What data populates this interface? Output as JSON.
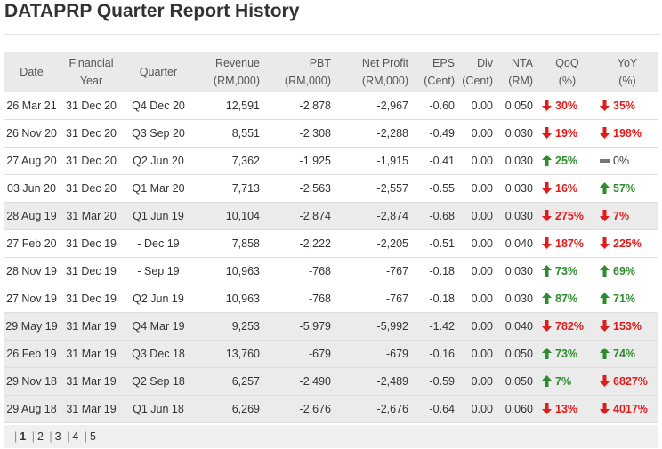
{
  "title": "DATAPRP Quarter Report History",
  "columns": {
    "date": "Date",
    "fy_1": "Financial",
    "fy_2": "Year",
    "quarter": "Quarter",
    "revenue_1": "Revenue",
    "revenue_2": "(RM,000)",
    "pbt_1": "PBT",
    "pbt_2": "(RM,000)",
    "np_1": "Net Profit",
    "np_2": "(RM,000)",
    "eps_1": "EPS",
    "eps_2": "(Cent)",
    "div_1": "Div",
    "div_2": "(Cent)",
    "nta_1": "NTA",
    "nta_2": "(RM)",
    "qoq_1": "QoQ",
    "qoq_2": "(%)",
    "yoy_1": "YoY",
    "yoy_2": "(%)"
  },
  "rows": [
    {
      "date": "26 Mar 21",
      "fy": "31 Dec 20",
      "quarter": "Q4 Dec 20",
      "revenue": "12,591",
      "pbt": "-2,878",
      "np": "-2,967",
      "eps": "-0.60",
      "div": "0.00",
      "nta": "0.050",
      "qoq": "30%",
      "qoq_dir": "down",
      "yoy": "35%",
      "yoy_dir": "down",
      "shaded": false
    },
    {
      "date": "26 Nov 20",
      "fy": "31 Dec 20",
      "quarter": "Q3 Sep 20",
      "revenue": "8,551",
      "pbt": "-2,308",
      "np": "-2,288",
      "eps": "-0.49",
      "div": "0.00",
      "nta": "0.030",
      "qoq": "19%",
      "qoq_dir": "down",
      "yoy": "198%",
      "yoy_dir": "down",
      "shaded": false
    },
    {
      "date": "27 Aug 20",
      "fy": "31 Dec 20",
      "quarter": "Q2 Jun 20",
      "revenue": "7,362",
      "pbt": "-1,925",
      "np": "-1,915",
      "eps": "-0.41",
      "div": "0.00",
      "nta": "0.030",
      "qoq": "25%",
      "qoq_dir": "up",
      "yoy": "0%",
      "yoy_dir": "flat",
      "shaded": false
    },
    {
      "date": "03 Jun 20",
      "fy": "31 Dec 20",
      "quarter": "Q1 Mar 20",
      "revenue": "7,713",
      "pbt": "-2,563",
      "np": "-2,557",
      "eps": "-0.55",
      "div": "0.00",
      "nta": "0.030",
      "qoq": "16%",
      "qoq_dir": "down",
      "yoy": "57%",
      "yoy_dir": "up",
      "shaded": false
    },
    {
      "date": "28 Aug 19",
      "fy": "31 Mar 20",
      "quarter": "Q1 Jun 19",
      "revenue": "10,104",
      "pbt": "-2,874",
      "np": "-2,874",
      "eps": "-0.68",
      "div": "0.00",
      "nta": "0.030",
      "qoq": "275%",
      "qoq_dir": "down",
      "yoy": "7%",
      "yoy_dir": "down",
      "shaded": true
    },
    {
      "date": "27 Feb 20",
      "fy": "31 Dec 19",
      "quarter": "- Dec 19",
      "revenue": "7,858",
      "pbt": "-2,222",
      "np": "-2,205",
      "eps": "-0.51",
      "div": "0.00",
      "nta": "0.040",
      "qoq": "187%",
      "qoq_dir": "down",
      "yoy": "225%",
      "yoy_dir": "down",
      "shaded": false
    },
    {
      "date": "28 Nov 19",
      "fy": "31 Dec 19",
      "quarter": "- Sep 19",
      "revenue": "10,963",
      "pbt": "-768",
      "np": "-767",
      "eps": "-0.18",
      "div": "0.00",
      "nta": "0.030",
      "qoq": "73%",
      "qoq_dir": "up",
      "yoy": "69%",
      "yoy_dir": "up",
      "shaded": false
    },
    {
      "date": "27 Nov 19",
      "fy": "31 Dec 19",
      "quarter": "Q2 Jun 19",
      "revenue": "10,963",
      "pbt": "-768",
      "np": "-767",
      "eps": "-0.18",
      "div": "0.00",
      "nta": "0.030",
      "qoq": "87%",
      "qoq_dir": "up",
      "yoy": "71%",
      "yoy_dir": "up",
      "shaded": false
    },
    {
      "date": "29 May 19",
      "fy": "31 Mar 19",
      "quarter": "Q4 Mar 19",
      "revenue": "9,253",
      "pbt": "-5,979",
      "np": "-5,992",
      "eps": "-1.42",
      "div": "0.00",
      "nta": "0.040",
      "qoq": "782%",
      "qoq_dir": "down",
      "yoy": "153%",
      "yoy_dir": "down",
      "shaded": true
    },
    {
      "date": "26 Feb 19",
      "fy": "31 Mar 19",
      "quarter": "Q3 Dec 18",
      "revenue": "13,760",
      "pbt": "-679",
      "np": "-679",
      "eps": "-0.16",
      "div": "0.00",
      "nta": "0.050",
      "qoq": "73%",
      "qoq_dir": "up",
      "yoy": "74%",
      "yoy_dir": "up",
      "shaded": true
    },
    {
      "date": "29 Nov 18",
      "fy": "31 Mar 19",
      "quarter": "Q2 Sep 18",
      "revenue": "6,257",
      "pbt": "-2,490",
      "np": "-2,489",
      "eps": "-0.59",
      "div": "0.00",
      "nta": "0.050",
      "qoq": "7%",
      "qoq_dir": "up",
      "yoy": "6827%",
      "yoy_dir": "down",
      "shaded": true
    },
    {
      "date": "29 Aug 18",
      "fy": "31 Mar 19",
      "quarter": "Q1 Jun 18",
      "revenue": "6,269",
      "pbt": "-2,676",
      "np": "-2,676",
      "eps": "-0.64",
      "div": "0.00",
      "nta": "0.060",
      "qoq": "13%",
      "qoq_dir": "down",
      "yoy": "4017%",
      "yoy_dir": "down",
      "shaded": true
    }
  ],
  "pagination": {
    "pages": [
      "1",
      "2",
      "3",
      "4",
      "5"
    ],
    "current": "1"
  },
  "colors": {
    "up": "#2e8b2e",
    "down": "#e01b1b",
    "flat": "#777777"
  },
  "icons": {
    "up": "up-arrow-icon",
    "down": "down-arrow-icon",
    "flat": "flat-dash-icon"
  }
}
